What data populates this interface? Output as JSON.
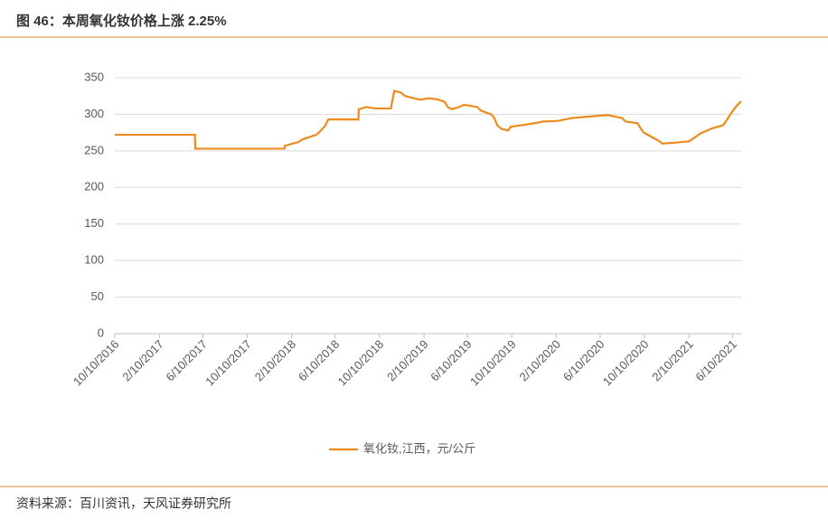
{
  "chart_data": {
    "type": "line",
    "title": "图 46：本周氧化钕价格上涨 2.25%",
    "source": "资料来源：百川资讯，天风证券研究所",
    "x": [
      "2016-10-10",
      "2017-05-19",
      "2017-05-20",
      "2018-01-21",
      "2018-01-22",
      "2018-02-28",
      "2018-03-13",
      "2018-04-19",
      "2018-05-02",
      "2018-05-14",
      "2018-05-22",
      "2018-08-13",
      "2018-08-14",
      "2018-09-03",
      "2018-09-28",
      "2018-11-11",
      "2018-11-12",
      "2018-11-20",
      "2018-12-07",
      "2018-12-20",
      "2019-01-14",
      "2019-01-31",
      "2019-02-25",
      "2019-03-22",
      "2019-04-08",
      "2019-04-16",
      "2019-04-28",
      "2019-05-18",
      "2019-05-31",
      "2019-07-07",
      "2019-07-17",
      "2019-08-14",
      "2019-08-23",
      "2019-08-31",
      "2019-09-12",
      "2019-09-30",
      "2019-10-07",
      "2019-11-06",
      "2019-12-14",
      "2020-01-03",
      "2020-02-14",
      "2020-03-25",
      "2020-05-11",
      "2020-06-30",
      "2020-08-09",
      "2020-08-19",
      "2020-09-21",
      "2020-09-28",
      "2020-10-08",
      "2020-11-14",
      "2020-11-29",
      "2020-12-29",
      "2021-02-10",
      "2021-02-25",
      "2021-03-14",
      "2021-04-16",
      "2021-05-15",
      "2021-05-25",
      "2021-06-04",
      "2021-06-14",
      "2021-06-24",
      "2021-07-04"
    ],
    "series": [
      {
        "name": "氧化钕,江西，元/公斤",
        "color": "#ed8b1e",
        "values": [
          272,
          272,
          253,
          253,
          257,
          262,
          266,
          272,
          278,
          285,
          293,
          293,
          307,
          310,
          308,
          308,
          312,
          332,
          330,
          325,
          322,
          320,
          322,
          320,
          317,
          310,
          307,
          310,
          313,
          310,
          305,
          300,
          295,
          285,
          280,
          278,
          283,
          285,
          288,
          290,
          291,
          295,
          297,
          299,
          295,
          290,
          288,
          282,
          275,
          265,
          260,
          261,
          263,
          268,
          274,
          281,
          285,
          292,
          300,
          307,
          313,
          318
        ]
      }
    ],
    "xlim": [
      "2016-10-10",
      "2021-07-04"
    ],
    "xticks": [
      {
        "value": "2016-10-10",
        "label": "10/10/2016"
      },
      {
        "value": "2017-02-10",
        "label": "2/10/2017"
      },
      {
        "value": "2017-06-10",
        "label": "6/10/2017"
      },
      {
        "value": "2017-10-10",
        "label": "10/10/2017"
      },
      {
        "value": "2018-02-10",
        "label": "2/10/2018"
      },
      {
        "value": "2018-06-10",
        "label": "6/10/2018"
      },
      {
        "value": "2018-10-10",
        "label": "10/10/2018"
      },
      {
        "value": "2019-02-10",
        "label": "2/10/2019"
      },
      {
        "value": "2019-06-10",
        "label": "6/10/2019"
      },
      {
        "value": "2019-10-10",
        "label": "10/10/2019"
      },
      {
        "value": "2020-02-10",
        "label": "2/10/2020"
      },
      {
        "value": "2020-06-10",
        "label": "6/10/2020"
      },
      {
        "value": "2020-10-10",
        "label": "10/10/2020"
      },
      {
        "value": "2021-02-10",
        "label": "2/10/2021"
      },
      {
        "value": "2021-06-10",
        "label": "6/10/2021"
      }
    ],
    "ylim": [
      0,
      350
    ],
    "yticks": [
      0,
      50,
      100,
      150,
      200,
      250,
      300,
      350
    ],
    "grid": true,
    "legend": "bottom"
  }
}
